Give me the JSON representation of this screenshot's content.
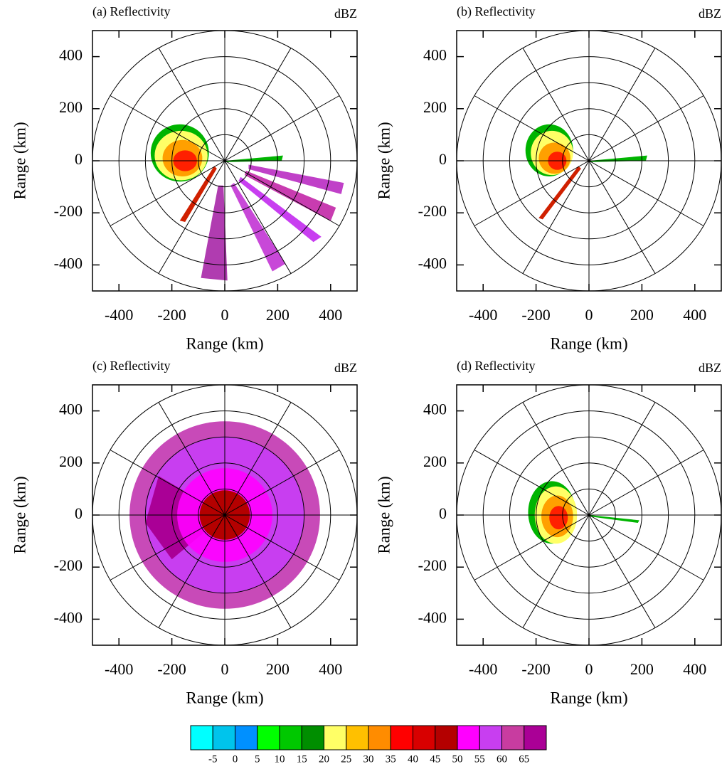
{
  "chart_data": [
    {
      "type": "ppi",
      "title": "(a) Reflectivity",
      "unit": "dBZ",
      "xlabel": "Range (km)",
      "ylabel": "Range (km)",
      "xlim": [
        -500,
        500
      ],
      "ylim": [
        -500,
        500
      ],
      "xticks": [
        -400,
        -200,
        0,
        200,
        400
      ],
      "yticks": [
        -400,
        -200,
        0,
        200,
        400
      ]
    },
    {
      "type": "ppi",
      "title": "(b) Reflectivity",
      "unit": "dBZ",
      "xlabel": "Range (km)",
      "ylabel": "Range (km)",
      "xlim": [
        -500,
        500
      ],
      "ylim": [
        -500,
        500
      ],
      "xticks": [
        -400,
        -200,
        0,
        200,
        400
      ],
      "yticks": [
        -400,
        -200,
        0,
        200,
        400
      ]
    },
    {
      "type": "ppi",
      "title": "(c) Reflectivity",
      "unit": "dBZ",
      "xlabel": "Range (km)",
      "ylabel": "Range (km)",
      "xlim": [
        -500,
        500
      ],
      "ylim": [
        -500,
        500
      ],
      "xticks": [
        -400,
        -200,
        0,
        200,
        400
      ],
      "yticks": [
        -400,
        -200,
        0,
        200,
        400
      ]
    },
    {
      "type": "ppi",
      "title": "(d) Reflectivity",
      "unit": "dBZ",
      "xlabel": "Range (km)",
      "ylabel": "Range (km)",
      "xlim": [
        -500,
        500
      ],
      "ylim": [
        -500,
        500
      ],
      "xticks": [
        -400,
        -200,
        0,
        200,
        400
      ],
      "yticks": [
        -400,
        -200,
        0,
        200,
        400
      ]
    },
    {
      "type": "colorbar",
      "colors": [
        "#00ffff",
        "#00c4ec",
        "#0090ff",
        "#00ff00",
        "#00c800",
        "#008e00",
        "#ffff66",
        "#ffc000",
        "#ff8c00",
        "#ff0000",
        "#d80000",
        "#b40000",
        "#ff00ff",
        "#c83ef0",
        "#c83ca0",
        "#aa0096"
      ],
      "ticks": [
        -5,
        0,
        5,
        10,
        15,
        20,
        25,
        30,
        35,
        40,
        45,
        50,
        55,
        60,
        65
      ]
    }
  ]
}
